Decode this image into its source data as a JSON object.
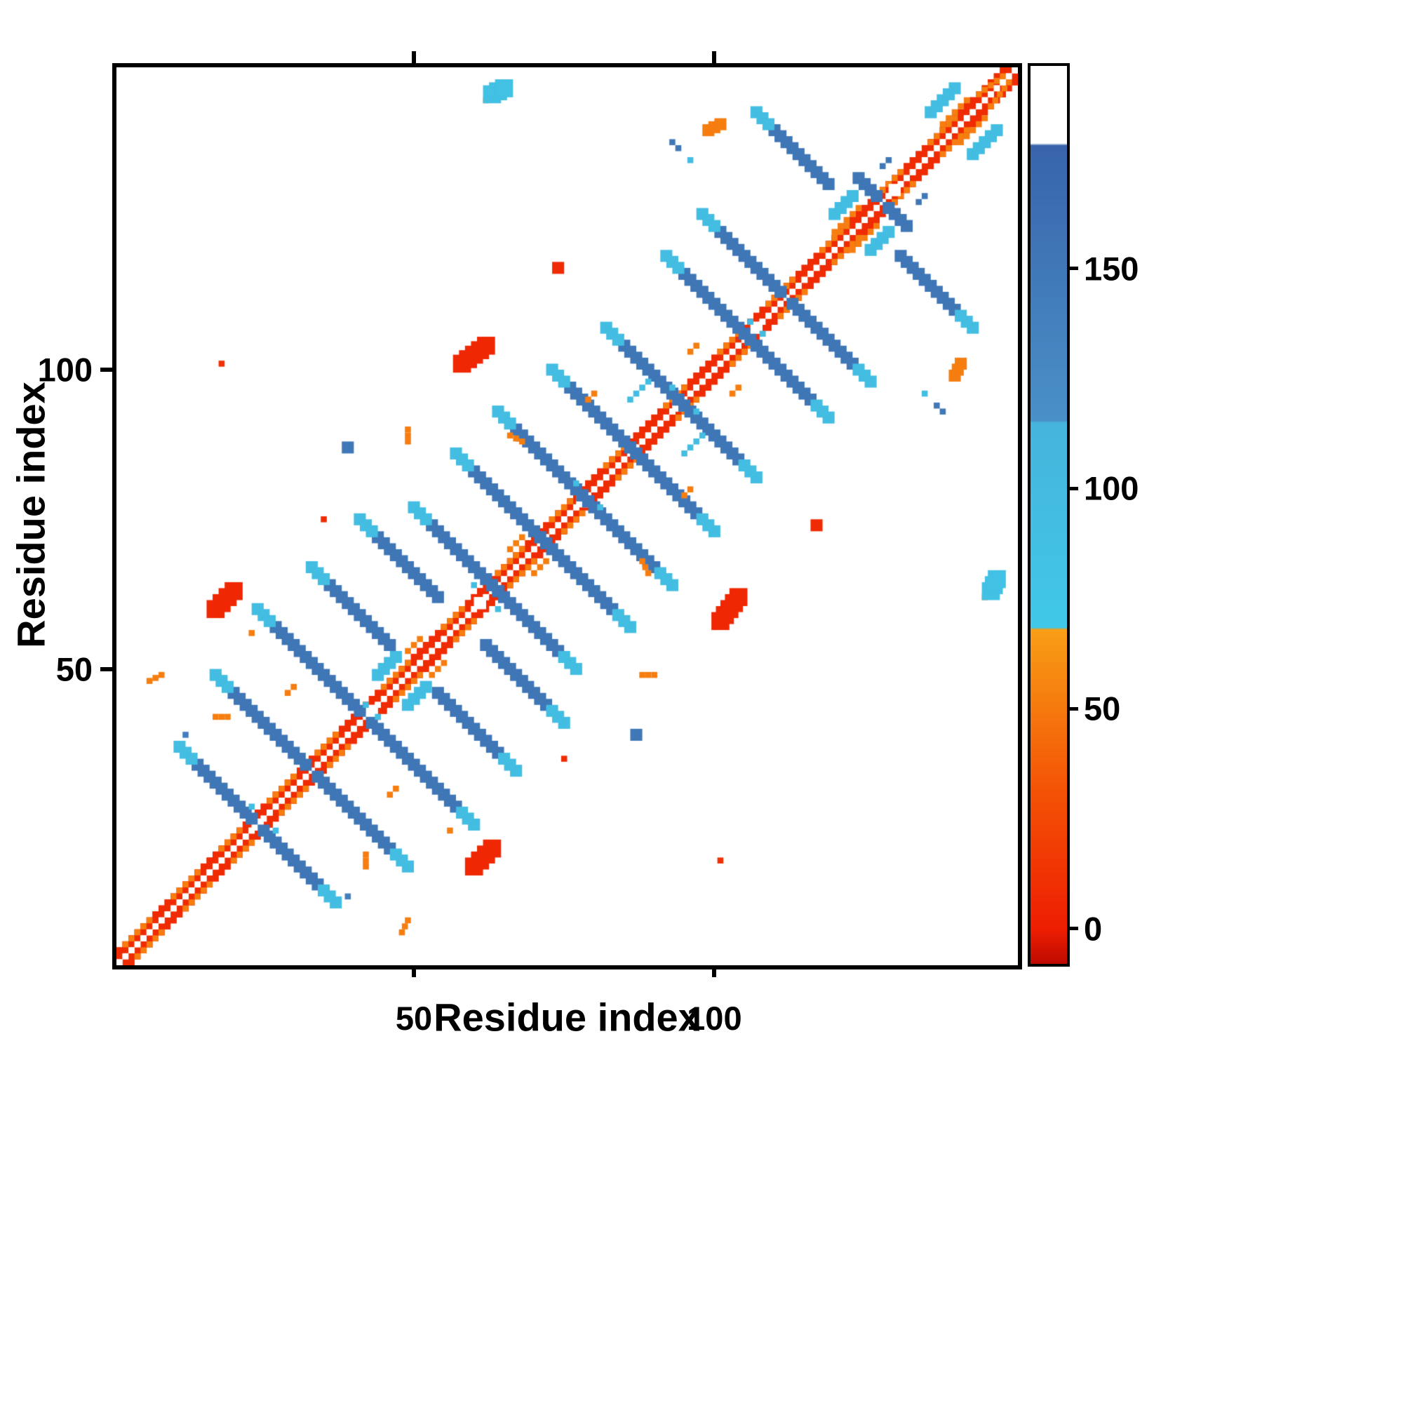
{
  "figure": {
    "background": "#ffffff"
  },
  "chart_data": {
    "type": "heatmap",
    "title": "",
    "xlabel": "Residue index",
    "ylabel": "Residue index",
    "x_range": [
      1,
      150
    ],
    "y_range": [
      1,
      150
    ],
    "x_ticks": [
      50,
      100
    ],
    "y_ticks": [
      50,
      100
    ],
    "grid": false,
    "symmetric": true,
    "n": 150,
    "colorbar": {
      "ticks": [
        0,
        50,
        100,
        150
      ],
      "vmin": -8,
      "vmax": 196,
      "stops": [
        {
          "v": -8,
          "c": [
            190,
            10,
            0
          ]
        },
        {
          "v": 0,
          "c": [
            238,
            30,
            2
          ]
        },
        {
          "v": 30,
          "c": [
            243,
            80,
            5
          ]
        },
        {
          "v": 68,
          "c": [
            248,
            158,
            22
          ]
        },
        {
          "v": 68.5,
          "c": [
            64,
            200,
            232
          ]
        },
        {
          "v": 115,
          "c": [
            70,
            180,
            220
          ]
        },
        {
          "v": 115.5,
          "c": [
            74,
            144,
            200
          ]
        },
        {
          "v": 178,
          "c": [
            56,
            100,
            170
          ]
        },
        {
          "v": 178.5,
          "c": [
            255,
            255,
            255
          ]
        },
        {
          "v": 196,
          "c": [
            255,
            255,
            255
          ]
        }
      ]
    },
    "features": [
      {
        "a": [
          1,
          1
        ],
        "b": [
          150,
          150
        ],
        "v": 8,
        "w": 3
      },
      {
        "a": [
          2,
          4
        ],
        "b": [
          6,
          8
        ],
        "v": 52,
        "w": 1
      },
      {
        "a": [
          10,
          12
        ],
        "b": [
          14,
          16
        ],
        "v": 52,
        "w": 1
      },
      {
        "a": [
          18,
          20
        ],
        "b": [
          21,
          23
        ],
        "v": 52,
        "w": 1
      },
      {
        "a": [
          26,
          28
        ],
        "b": [
          30,
          32
        ],
        "v": 52,
        "w": 1
      },
      {
        "a": [
          34,
          36
        ],
        "b": [
          37,
          39
        ],
        "v": 52,
        "w": 1
      },
      {
        "a": [
          45,
          47
        ],
        "b": [
          49,
          51
        ],
        "v": 52,
        "w": 1
      },
      {
        "a": [
          55,
          57
        ],
        "b": [
          58,
          60
        ],
        "v": 52,
        "w": 1
      },
      {
        "a": [
          64,
          66
        ],
        "b": [
          68,
          70
        ],
        "v": 52,
        "w": 1
      },
      {
        "a": [
          73,
          75
        ],
        "b": [
          76,
          78
        ],
        "v": 52,
        "w": 1
      },
      {
        "a": [
          82,
          84
        ],
        "b": [
          85,
          87
        ],
        "v": 52,
        "w": 1
      },
      {
        "a": [
          92,
          94
        ],
        "b": [
          95,
          97
        ],
        "v": 52,
        "w": 1
      },
      {
        "a": [
          101,
          103
        ],
        "b": [
          104,
          106
        ],
        "v": 52,
        "w": 1
      },
      {
        "a": [
          109,
          111
        ],
        "b": [
          113,
          115
        ],
        "v": 52,
        "w": 1
      },
      {
        "a": [
          118,
          120
        ],
        "b": [
          122,
          124
        ],
        "v": 52,
        "w": 1
      },
      {
        "a": [
          127,
          129
        ],
        "b": [
          131,
          133
        ],
        "v": 52,
        "w": 1
      },
      {
        "a": [
          136,
          138
        ],
        "b": [
          140,
          142
        ],
        "v": 52,
        "w": 1
      },
      {
        "a": [
          144,
          146
        ],
        "b": [
          148,
          149
        ],
        "v": 52,
        "w": 1
      },
      {
        "a": [
          120,
          123
        ],
        "b": [
          124,
          127
        ],
        "v": 52,
        "w": 1
      },
      {
        "a": [
          138,
          141
        ],
        "b": [
          142,
          145
        ],
        "v": 52,
        "w": 1
      },
      {
        "a": [
          1,
          1
        ],
        "b": [
          150,
          150
        ],
        "v": 188,
        "w": 1
      },
      {
        "a": [
          24,
          24
        ],
        "b": [
          24,
          24
        ],
        "v": 188,
        "w": 2
      },
      {
        "a": [
          43,
          43
        ],
        "b": [
          43,
          43
        ],
        "v": 188,
        "w": 2
      },
      {
        "a": [
          61,
          61
        ],
        "b": [
          61,
          61
        ],
        "v": 188,
        "w": 2
      },
      {
        "a": [
          78,
          78
        ],
        "b": [
          78,
          78
        ],
        "v": 188,
        "w": 2
      },
      {
        "a": [
          94,
          94
        ],
        "b": [
          94,
          94
        ],
        "v": 188,
        "w": 2
      },
      {
        "a": [
          107,
          107
        ],
        "b": [
          107,
          107
        ],
        "v": 188,
        "w": 2
      },
      {
        "a": [
          130,
          130
        ],
        "b": [
          130,
          130
        ],
        "v": 188,
        "w": 2
      },
      {
        "a": [
          14,
          34
        ],
        "b": [
          23,
          25
        ],
        "v": 152,
        "w": 2
      },
      {
        "a": [
          20,
          46
        ],
        "b": [
          32,
          34
        ],
        "v": 152,
        "w": 2
      },
      {
        "a": [
          27,
          57
        ],
        "b": [
          41,
          43
        ],
        "v": 152,
        "w": 2
      },
      {
        "a": [
          36,
          64
        ],
        "b": [
          46,
          54
        ],
        "v": 152,
        "w": 2
      },
      {
        "a": [
          44,
          72
        ],
        "b": [
          54,
          62
        ],
        "v": 152,
        "w": 2
      },
      {
        "a": [
          53,
          74
        ],
        "b": [
          64,
          63
        ],
        "v": 152,
        "w": 2
      },
      {
        "a": [
          60,
          83
        ],
        "b": [
          72,
          71
        ],
        "v": 152,
        "w": 2
      },
      {
        "a": [
          67,
          90
        ],
        "b": [
          79,
          78
        ],
        "v": 152,
        "w": 2
      },
      {
        "a": [
          76,
          97
        ],
        "b": [
          87,
          86
        ],
        "v": 152,
        "w": 2
      },
      {
        "a": [
          85,
          104
        ],
        "b": [
          95,
          94
        ],
        "v": 152,
        "w": 2
      },
      {
        "a": [
          95,
          116
        ],
        "b": [
          105,
          106
        ],
        "v": 152,
        "w": 2
      },
      {
        "a": [
          101,
          123
        ],
        "b": [
          111,
          113
        ],
        "v": 152,
        "w": 2
      },
      {
        "a": [
          110,
          140
        ],
        "b": [
          119,
          131
        ],
        "v": 152,
        "w": 2
      },
      {
        "a": [
          124,
          132
        ],
        "b": [
          127,
          129
        ],
        "v": 152,
        "w": 2
      },
      {
        "a": [
          11,
          37
        ],
        "b": [
          13,
          35
        ],
        "v": 95,
        "w": 2
      },
      {
        "a": [
          17,
          49
        ],
        "b": [
          19,
          47
        ],
        "v": 95,
        "w": 2
      },
      {
        "a": [
          24,
          60
        ],
        "b": [
          26,
          58
        ],
        "v": 95,
        "w": 2
      },
      {
        "a": [
          33,
          67
        ],
        "b": [
          35,
          65
        ],
        "v": 95,
        "w": 2
      },
      {
        "a": [
          41,
          75
        ],
        "b": [
          43,
          73
        ],
        "v": 95,
        "w": 2
      },
      {
        "a": [
          50,
          77
        ],
        "b": [
          52,
          75
        ],
        "v": 95,
        "w": 2
      },
      {
        "a": [
          57,
          86
        ],
        "b": [
          59,
          84
        ],
        "v": 95,
        "w": 2
      },
      {
        "a": [
          64,
          93
        ],
        "b": [
          66,
          91
        ],
        "v": 95,
        "w": 2
      },
      {
        "a": [
          73,
          100
        ],
        "b": [
          75,
          98
        ],
        "v": 95,
        "w": 2
      },
      {
        "a": [
          82,
          107
        ],
        "b": [
          84,
          105
        ],
        "v": 95,
        "w": 2
      },
      {
        "a": [
          92,
          119
        ],
        "b": [
          94,
          117
        ],
        "v": 95,
        "w": 2
      },
      {
        "a": [
          98,
          126
        ],
        "b": [
          100,
          124
        ],
        "v": 95,
        "w": 2
      },
      {
        "a": [
          107,
          143
        ],
        "b": [
          109,
          141
        ],
        "v": 95,
        "w": 2
      },
      {
        "a": [
          44,
          49
        ],
        "b": [
          47,
          52
        ],
        "v": 95,
        "w": 2
      },
      {
        "a": [
          86,
          95
        ],
        "b": [
          89,
          98
        ],
        "v": 95,
        "w": 1
      },
      {
        "a": [
          120,
          126
        ],
        "b": [
          123,
          129
        ],
        "v": 95,
        "w": 2
      },
      {
        "a": [
          136,
          143
        ],
        "b": [
          140,
          147
        ],
        "v": 95,
        "w": 2
      },
      {
        "a": [
          23,
          27
        ],
        "b": [
          23,
          27
        ],
        "v": 95,
        "w": 1
      },
      {
        "a": [
          42,
          44
        ],
        "b": [
          42,
          44
        ],
        "v": 95,
        "w": 1
      },
      {
        "a": [
          60,
          64
        ],
        "b": [
          60,
          64
        ],
        "v": 95,
        "w": 1
      },
      {
        "a": [
          77,
          81
        ],
        "b": [
          77,
          81
        ],
        "v": 95,
        "w": 1
      },
      {
        "a": [
          93,
          97
        ],
        "b": [
          93,
          97
        ],
        "v": 95,
        "w": 1
      },
      {
        "a": [
          106,
          108
        ],
        "b": [
          106,
          108
        ],
        "v": 95,
        "w": 1
      },
      {
        "a": [
          58,
          101
        ],
        "b": [
          62,
          104
        ],
        "v": 6,
        "w": 3
      },
      {
        "a": [
          17,
          60
        ],
        "b": [
          20,
          63
        ],
        "v": 6,
        "w": 3
      },
      {
        "a": [
          18,
          101
        ],
        "b": [
          18,
          101
        ],
        "v": 10,
        "w": 1
      },
      {
        "a": [
          35,
          75
        ],
        "b": [
          35,
          75
        ],
        "v": 8,
        "w": 1
      },
      {
        "a": [
          74,
          117
        ],
        "b": [
          74,
          117
        ],
        "v": 8,
        "w": 2
      },
      {
        "a": [
          6,
          48
        ],
        "b": [
          8,
          49
        ],
        "v": 52,
        "w": 1
      },
      {
        "a": [
          29,
          46
        ],
        "b": [
          30,
          47
        ],
        "v": 52,
        "w": 1
      },
      {
        "a": [
          17,
          42
        ],
        "b": [
          19,
          42
        ],
        "v": 52,
        "w": 1
      },
      {
        "a": [
          62,
          145
        ],
        "b": [
          62,
          145
        ],
        "v": 52,
        "w": 1
      },
      {
        "a": [
          63,
          146
        ],
        "b": [
          65,
          147
        ],
        "v": 85,
        "w": 3
      },
      {
        "a": [
          99,
          140
        ],
        "b": [
          101,
          141
        ],
        "v": 52,
        "w": 2
      },
      {
        "a": [
          88,
          49
        ],
        "b": [
          90,
          49
        ],
        "v": 52,
        "w": 1
      },
      {
        "a": [
          66,
          89
        ],
        "b": [
          68,
          88
        ],
        "v": 52,
        "w": 1
      },
      {
        "a": [
          79,
          95
        ],
        "b": [
          80,
          96
        ],
        "v": 52,
        "w": 1
      },
      {
        "a": [
          96,
          103
        ],
        "b": [
          97,
          104
        ],
        "v": 52,
        "w": 1
      },
      {
        "a": [
          49,
          53
        ],
        "b": [
          51,
          55
        ],
        "v": 52,
        "w": 1
      },
      {
        "a": [
          66,
          70
        ],
        "b": [
          68,
          72
        ],
        "v": 52,
        "w": 1
      },
      {
        "a": [
          39,
          87
        ],
        "b": [
          39,
          87
        ],
        "v": 150,
        "w": 2
      },
      {
        "a": [
          93,
          138
        ],
        "b": [
          94,
          137
        ],
        "v": 150,
        "w": 1
      },
      {
        "a": [
          96,
          135
        ],
        "b": [
          96,
          135
        ],
        "v": 95,
        "w": 1
      },
      {
        "a": [
          12,
          39
        ],
        "b": [
          12,
          39
        ],
        "v": 140,
        "w": 1
      },
      {
        "a": [
          128,
          134
        ],
        "b": [
          129,
          135
        ],
        "v": 150,
        "w": 1
      },
      {
        "a": [
          56,
          23
        ],
        "b": [
          56,
          23
        ],
        "v": 52,
        "w": 1
      }
    ]
  }
}
